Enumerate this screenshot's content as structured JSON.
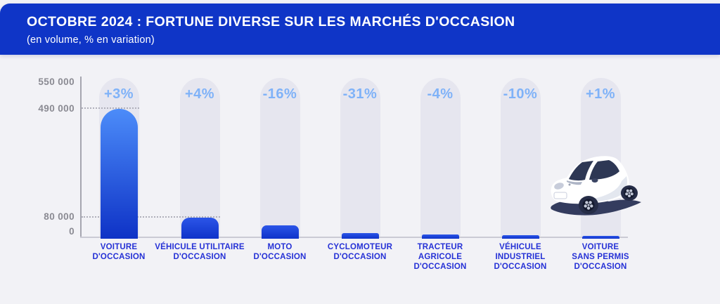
{
  "header": {
    "title": "OCTOBRE 2024 : FORTUNE DIVERSE SUR LES MARCHÉS D'OCCASION",
    "subtitle": "(en volume, % en variation)"
  },
  "colors": {
    "banner_bg": "#0F35C7",
    "banner_text": "#FFFFFF",
    "page_bg": "#F2F2F6",
    "pill_bg": "#E6E6EF",
    "bar_gradient_top": "#4C8CF9",
    "bar_gradient_bottom": "#0E32C6",
    "small_bar_top": "#2B55E8",
    "small_bar_bottom": "#0F33CA",
    "pct_label": "#7FB2F8",
    "category_label": "#2531D6",
    "axis_text": "#8A8A92"
  },
  "chart_data": {
    "type": "bar",
    "title": "OCTOBRE 2024 : FORTUNE DIVERSE SUR LES MARCHÉS D'OCCASION",
    "subtitle": "(en volume, % en variation)",
    "categories": [
      "VOITURE D'OCCASION",
      "VÉHICULE UTILITAIRE D'OCCASION",
      "MOTO D'OCCASION",
      "CYCLOMOTEUR D'OCCASION",
      "TRACTEUR AGRICOLE D'OCCASION",
      "VÉHICULE INDUSTRIEL D'OCCASION",
      "VOITURE SANS PERMIS D'OCCASION"
    ],
    "category_lines": [
      [
        "VOITURE",
        "D'OCCASION"
      ],
      [
        "VÉHICULE UTILITAIRE",
        "D'OCCASION"
      ],
      [
        "MOTO",
        "D'OCCASION"
      ],
      [
        "CYCLOMOTEUR",
        "D'OCCASION"
      ],
      [
        "TRACTEUR",
        "AGRICOLE",
        "D'OCCASION"
      ],
      [
        "VÉHICULE",
        "INDUSTRIEL",
        "D'OCCASION"
      ],
      [
        "VOITURE",
        "SANS PERMIS",
        "D'OCCASION"
      ]
    ],
    "values": [
      490000,
      80000,
      49000,
      22000,
      17000,
      13000,
      10000
    ],
    "value_labels": [
      "+3%",
      "+4%",
      "-16%",
      "-31%",
      "-4%",
      "-10%",
      "+1%"
    ],
    "y_ticks": [
      "550 000",
      "490 000",
      "80 000",
      "0"
    ],
    "y_tick_values": [
      550000,
      490000,
      80000,
      0
    ],
    "ylim": [
      0,
      550000
    ],
    "gridline_values": [
      490000,
      80000
    ],
    "legend": "none",
    "grid": "dotted horizontal lines at 490 000 and 80 000"
  }
}
